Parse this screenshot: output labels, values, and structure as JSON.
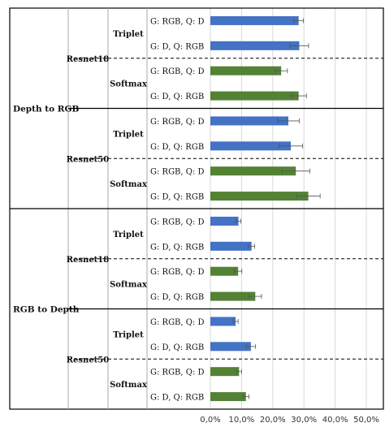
{
  "chart_data": {
    "type": "bar",
    "orientation": "horizontal",
    "title": "",
    "xlabel": "",
    "ylabel": "",
    "xlim": [
      0,
      50
    ],
    "x_ticks": [
      "0,0%",
      "10,0%",
      "20,0%",
      "30,0%",
      "40,0%",
      "50,0%"
    ],
    "grid": "vertical",
    "legend": "none",
    "colors": {
      "Triplet": "#4472c4",
      "Softmax": "#548235"
    },
    "directions": [
      {
        "name": "Depth to RGB",
        "models": [
          {
            "name": "Resnet18",
            "losses": [
              {
                "name": "Triplet",
                "bars": [
                  {
                    "label": "G: RGB, Q: D",
                    "value": 28.3,
                    "error": 1.5
                  },
                  {
                    "label": "G: D, Q: RGB",
                    "value": 28.5,
                    "error": 3.0
                  }
                ]
              },
              {
                "name": "Softmax",
                "bars": [
                  {
                    "label": "G: RGB, Q: D",
                    "value": 22.7,
                    "error": 2.0
                  },
                  {
                    "label": "G: D, Q: RGB",
                    "value": 28.3,
                    "error": 2.5
                  }
                ]
              }
            ]
          },
          {
            "name": "Resnet50",
            "losses": [
              {
                "name": "Triplet",
                "bars": [
                  {
                    "label": "G: RGB, Q: D",
                    "value": 25.0,
                    "error": 3.5
                  },
                  {
                    "label": "G: D, Q: RGB",
                    "value": 25.8,
                    "error": 3.8
                  }
                ]
              },
              {
                "name": "Softmax",
                "bars": [
                  {
                    "label": "G: RGB, Q: D",
                    "value": 27.4,
                    "error": 4.5
                  },
                  {
                    "label": "G: D, Q: RGB",
                    "value": 31.4,
                    "error": 3.8
                  }
                ]
              }
            ]
          }
        ]
      },
      {
        "name": "RGB to Depth",
        "models": [
          {
            "name": "Resnet18",
            "losses": [
              {
                "name": "Triplet",
                "bars": [
                  {
                    "label": "G: RGB, Q: D",
                    "value": 9.0,
                    "error": 0.8
                  },
                  {
                    "label": "G: D, Q: RGB",
                    "value": 13.2,
                    "error": 1.0
                  }
                ]
              },
              {
                "name": "Softmax",
                "bars": [
                  {
                    "label": "G: RGB, Q: D",
                    "value": 8.9,
                    "error": 1.2
                  },
                  {
                    "label": "G: D, Q: RGB",
                    "value": 14.4,
                    "error": 2.0
                  }
                ]
              }
            ]
          },
          {
            "name": "Resnet50",
            "losses": [
              {
                "name": "Triplet",
                "bars": [
                  {
                    "label": "G: RGB, Q: D",
                    "value": 8.1,
                    "error": 0.8
                  },
                  {
                    "label": "G: D, Q: RGB",
                    "value": 13.0,
                    "error": 1.5
                  }
                ]
              },
              {
                "name": "Softmax",
                "bars": [
                  {
                    "label": "G: RGB, Q: D",
                    "value": 9.2,
                    "error": 0.8
                  },
                  {
                    "label": "G: D, Q: RGB",
                    "value": 11.4,
                    "error": 1.0
                  }
                ]
              }
            ]
          }
        ]
      }
    ]
  }
}
